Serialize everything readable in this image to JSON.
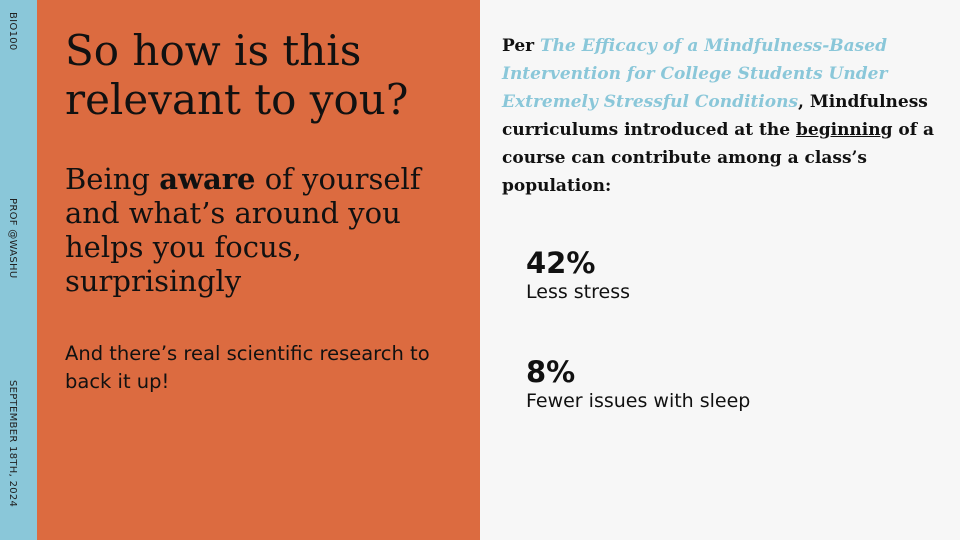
{
  "sidebar": {
    "course": "BIO100",
    "author": "PROF @WASHU",
    "date": "SEPTEMBER 18TH, 2024"
  },
  "left": {
    "title": "So how is this relevant to you?",
    "sub_before": "Being ",
    "sub_bold": "aware",
    "sub_after": " of yourself and what’s around you helps you focus, surprisingly",
    "note": "And there’s real scientific research to back it up!"
  },
  "right": {
    "per": "Per ",
    "source_title": "The Efficacy of a Mindfulness-Based Intervention for College Students Under Extremely Stressful Conditions",
    "comma": ",",
    "body_before": " Mindfulness curriculums introduced at the ",
    "body_underlined": "beginning",
    "body_after": " of a course can contribute among a class’s population:",
    "stats": [
      {
        "value": "42%",
        "label": "Less stress"
      },
      {
        "value": "8%",
        "label": "Fewer issues with sleep"
      }
    ]
  },
  "colors": {
    "accent_blue": "#8ac7d9",
    "accent_orange": "#dc6b40",
    "background": "#f7f7f7"
  }
}
